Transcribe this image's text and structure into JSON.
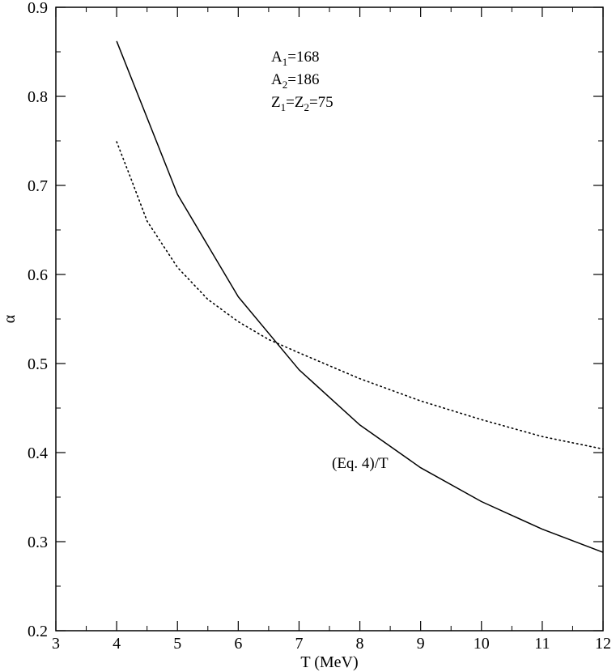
{
  "chart_data": {
    "type": "line",
    "title": "",
    "xlabel": "T (MeV)",
    "ylabel": "α",
    "xlim": [
      3,
      12
    ],
    "ylim": [
      0.2,
      0.9
    ],
    "xticks": [
      3,
      4,
      5,
      6,
      7,
      8,
      9,
      10,
      11,
      12
    ],
    "xtick_labels": [
      "3",
      "4",
      "5",
      "6",
      "7",
      "8",
      "9",
      "10",
      "11",
      "12"
    ],
    "yticks": [
      0.2,
      0.3,
      0.4,
      0.5,
      0.6,
      0.7,
      0.8,
      0.9
    ],
    "ytick_labels": [
      "0.2",
      "0.3",
      "0.4",
      "0.5",
      "0.6",
      "0.7",
      "0.8",
      "0.9"
    ],
    "grid": false,
    "legend": "none",
    "series": [
      {
        "style": "solid",
        "color": "#000000",
        "x": [
          4,
          5,
          6,
          7,
          8,
          9,
          10,
          11,
          12
        ],
        "y": [
          0.862,
          0.69,
          0.575,
          0.493,
          0.431,
          0.383,
          0.345,
          0.314,
          0.288
        ]
      },
      {
        "style": "dotted",
        "color": "#000000",
        "x": [
          4,
          4.25,
          4.5,
          5,
          5.5,
          6,
          6.5,
          7,
          8,
          9,
          10,
          11,
          12
        ],
        "y": [
          0.749,
          0.705,
          0.66,
          0.608,
          0.572,
          0.547,
          0.527,
          0.512,
          0.483,
          0.458,
          0.437,
          0.418,
          0.404
        ]
      }
    ],
    "annotations": {
      "params": [
        {
          "base": "A",
          "sub1": "1",
          "rest": "=168"
        },
        {
          "base": "A",
          "sub1": "2",
          "rest": "=186"
        },
        {
          "base": "Z",
          "sub1": "1",
          "mid": "=Z",
          "sub2": "2",
          "rest": "=75"
        }
      ],
      "curve_label": "(Eq. 4)/T"
    }
  }
}
